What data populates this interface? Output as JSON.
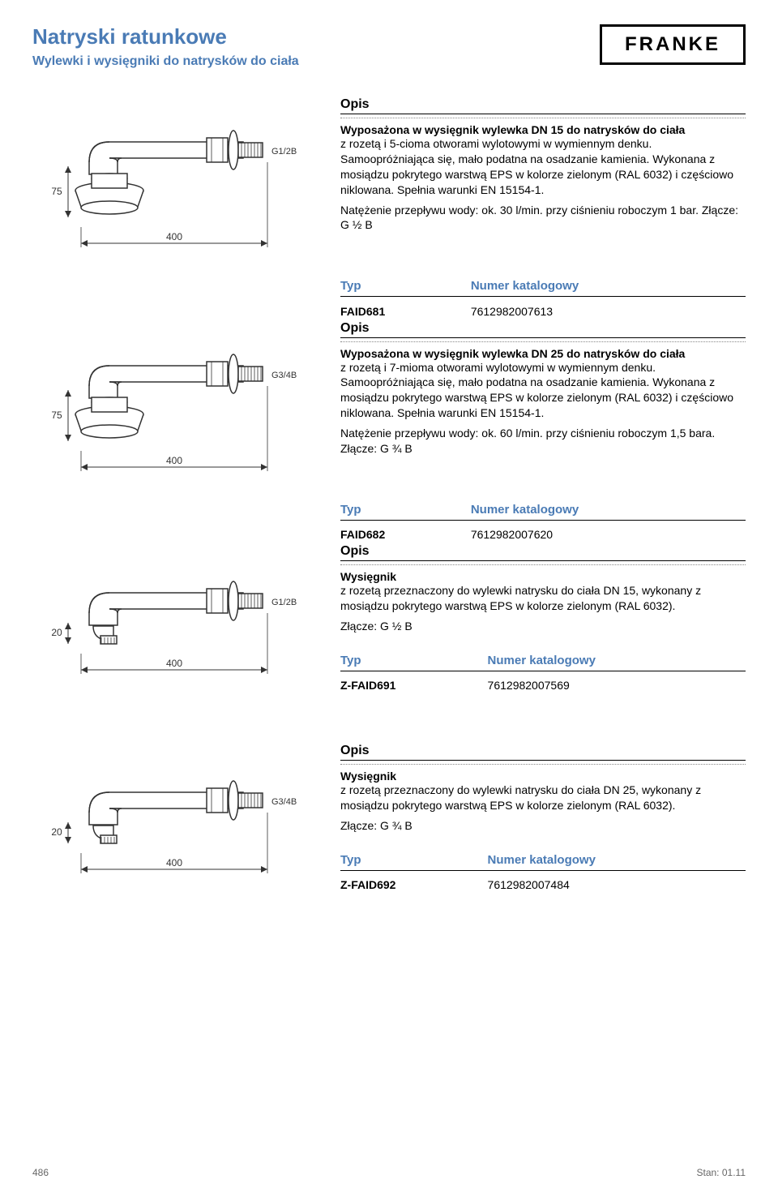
{
  "header": {
    "title": "Natryski ratunkowe",
    "subtitle": "Wylewki i wysięgniki do natrysków do ciała",
    "logo_text": "FRANKE"
  },
  "labels": {
    "opis": "Opis",
    "type_col": "Typ",
    "catalog_col": "Numer katalogowy"
  },
  "products": [
    {
      "diagram": {
        "thread_label": "G1/2B",
        "height_label": "75",
        "width_label": "400",
        "has_head": true
      },
      "title": "Wyposażona w wysięgnik wylewka DN 15 do natrysków do ciała",
      "desc": "z rozetą i 5-cioma otworami wylotowymi w wymiennym denku. Samoopróżniająca się, mało podatna na osadzanie kamienia. Wykonana z mosiądzu pokrytego warstwą EPS w kolorze zielonym (RAL 6032) i częściowo niklowana. Spełnia warunki EN 15154-1.",
      "note": "Natężenie przepływu wody: ok. 30 l/min. przy ciśnieniu roboczym 1 bar. Złącze: G ½ B",
      "code": "FAID681",
      "catalog": "7612982007613"
    },
    {
      "diagram": {
        "thread_label": "G3/4B",
        "height_label": "75",
        "width_label": "400",
        "has_head": true
      },
      "title": "Wyposażona w wysięgnik wylewka DN 25 do natrysków do ciała",
      "desc": "z rozetą i 7-mioma otworami wylotowymi w wymiennym denku. Samoopróżniająca się, mało podatna na osadzanie kamienia. Wykonana z mosiądzu pokrytego warstwą EPS w kolorze zielonym (RAL 6032) i częściowo niklowana. Spełnia warunki EN 15154-1.",
      "note": "Natężenie przepływu wody: ok. 60 l/min. przy ciśnieniu roboczym 1,5 bara. Złącze: G ¾ B",
      "code": "FAID682",
      "catalog": "7612982007620"
    },
    {
      "diagram": {
        "thread_label": "G1/2B",
        "height_label": "20",
        "width_label": "400",
        "has_head": false
      },
      "title": "Wysięgnik",
      "desc": "z rozetą przeznaczony do wylewki natrysku do ciała DN 15, wykonany z mosiądzu pokrytego warstwą EPS w kolorze zielonym (RAL 6032).",
      "note": "Złącze: G ½ B",
      "code": "Z-FAID691",
      "catalog": "7612982007569"
    },
    {
      "diagram": {
        "thread_label": "G3/4B",
        "height_label": "20",
        "width_label": "400",
        "has_head": false
      },
      "title": "Wysięgnik",
      "desc": "z rozetą przeznaczony do wylewki natrysku do ciała DN 25, wykonany z mosiądzu pokrytego warstwą EPS w kolorze zielonym (RAL 6032).",
      "note": "Złącze: G ¾ B",
      "code": "Z-FAID692",
      "catalog": "7612982007484"
    }
  ],
  "footer": {
    "page_number": "486",
    "date": "Stan: 01.11"
  },
  "colors": {
    "accent": "#4a7bb5",
    "text": "#000000",
    "dotted": "#888888",
    "footer": "#666666",
    "diagram_stroke": "#333333"
  }
}
